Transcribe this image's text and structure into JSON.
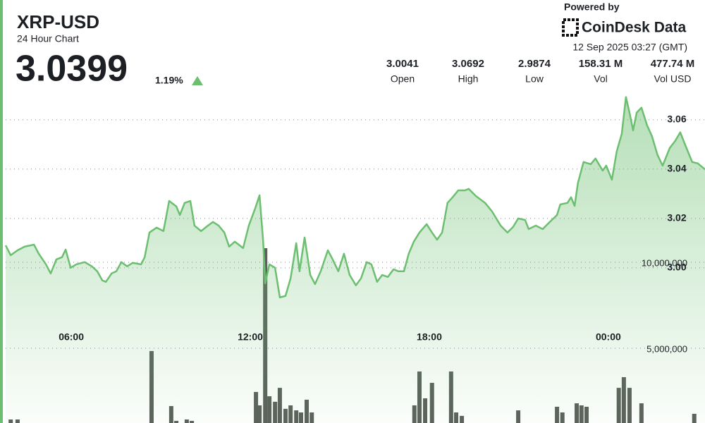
{
  "chart_data": {
    "type": "line",
    "title": "XRP-USD",
    "subtitle": "24 Hour Chart",
    "price": "3.0399",
    "change": "1.19%",
    "powered_by": "Powered by",
    "brand": "CoinDesk Data",
    "timestamp": "12 Sep 2025 03:27 (GMT)",
    "stats": [
      {
        "value": "3.0041",
        "label": "Open"
      },
      {
        "value": "3.0692",
        "label": "High"
      },
      {
        "value": "2.9874",
        "label": "Low"
      },
      {
        "value": "158.31 M",
        "label": "Vol"
      },
      {
        "value": "477.74 M",
        "label": "Vol USD"
      }
    ],
    "color": "#6cbf70",
    "grid": true,
    "xlim": [
      3.8,
      27.24
    ],
    "xticks": [
      {
        "value": 6,
        "label": "06:00"
      },
      {
        "value": 12,
        "label": "12:00"
      },
      {
        "value": 18,
        "label": "18:00"
      },
      {
        "value": 24,
        "label": "00:00"
      }
    ],
    "ylim": [
      2.9371,
      3.0714
    ],
    "yticks": [
      {
        "value": 3.0,
        "label": "3.00"
      },
      {
        "value": 3.02,
        "label": "3.02"
      },
      {
        "value": 3.04,
        "label": "3.04"
      },
      {
        "value": 3.06,
        "label": "3.06"
      }
    ],
    "y2lim": [
      655000,
      19920000
    ],
    "y2ticks": [
      {
        "value": 5000000,
        "label": "5,000,000"
      },
      {
        "value": 10000000,
        "label": "10,000,000"
      }
    ],
    "x": [
      3.8,
      3.97,
      4.2,
      4.44,
      4.75,
      4.91,
      5.15,
      5.31,
      5.5,
      5.69,
      5.81,
      5.98,
      6.17,
      6.45,
      6.69,
      6.87,
      7.04,
      7.16,
      7.35,
      7.51,
      7.68,
      7.87,
      8.06,
      8.34,
      8.46,
      8.62,
      8.86,
      9.09,
      9.28,
      9.52,
      9.64,
      9.8,
      9.99,
      10.13,
      10.35,
      10.58,
      10.75,
      10.94,
      11.13,
      11.29,
      11.48,
      11.76,
      11.95,
      12.17,
      12.31,
      12.43,
      12.5,
      12.64,
      12.83,
      12.99,
      13.18,
      13.35,
      13.54,
      13.65,
      13.82,
      14.01,
      14.17,
      14.36,
      14.6,
      14.76,
      14.95,
      15.14,
      15.33,
      15.54,
      15.71,
      15.9,
      16.06,
      16.25,
      16.42,
      16.61,
      16.8,
      16.96,
      17.15,
      17.31,
      17.48,
      17.67,
      17.91,
      18.09,
      18.26,
      18.43,
      18.61,
      18.78,
      18.97,
      19.2,
      19.32,
      19.56,
      19.87,
      20.1,
      20.39,
      20.62,
      20.81,
      20.98,
      21.21,
      21.33,
      21.57,
      21.8,
      22.04,
      22.28,
      22.39,
      22.63,
      22.75,
      22.87,
      22.98,
      23.17,
      23.41,
      23.57,
      23.81,
      23.93,
      24.12,
      24.28,
      24.45,
      24.59,
      24.71,
      24.83,
      24.95,
      25.11,
      25.3,
      25.46,
      25.65,
      25.82,
      26.06,
      26.24,
      26.41,
      26.57,
      26.81,
      27.0,
      27.24
    ],
    "values": [
      3.0091,
      3.0051,
      3.0071,
      3.0086,
      3.0094,
      3.0057,
      3.0014,
      2.9977,
      3.0034,
      3.0043,
      3.0074,
      3.0,
      3.0014,
      3.0023,
      3.0006,
      2.9986,
      2.9949,
      2.9943,
      2.9977,
      2.9986,
      3.0023,
      3.0006,
      3.002,
      3.0014,
      3.0043,
      3.0143,
      3.0163,
      3.0149,
      3.0271,
      3.0249,
      3.0214,
      3.0263,
      3.0271,
      3.0171,
      3.0149,
      3.0171,
      3.0186,
      3.0171,
      3.0143,
      3.0086,
      3.0106,
      3.008,
      3.0171,
      3.0243,
      3.0294,
      3.0109,
      2.9937,
      3.0014,
      3.0,
      2.988,
      2.9886,
      2.9957,
      3.01,
      2.9986,
      3.0123,
      2.9971,
      2.9934,
      2.9986,
      3.0071,
      3.0034,
      2.9986,
      3.0057,
      2.9971,
      2.9929,
      2.9957,
      3.0023,
      3.0014,
      2.9943,
      2.9971,
      2.9963,
      2.9994,
      2.9986,
      2.9986,
      3.0057,
      3.0106,
      3.0143,
      3.0177,
      3.0143,
      3.0114,
      3.0143,
      3.0263,
      3.0286,
      3.0314,
      3.0314,
      3.032,
      3.0291,
      3.0263,
      3.0229,
      3.0171,
      3.0143,
      3.0166,
      3.02,
      3.0194,
      3.0157,
      3.0171,
      3.0157,
      3.0186,
      3.0214,
      3.0257,
      3.0263,
      3.0286,
      3.0251,
      3.0343,
      3.0429,
      3.042,
      3.0443,
      3.0394,
      3.0414,
      3.0357,
      3.0471,
      3.0543,
      3.0692,
      3.0629,
      3.0557,
      3.0629,
      3.0649,
      3.0577,
      3.0534,
      3.0457,
      3.0414,
      3.0486,
      3.0514,
      3.0549,
      3.05,
      3.0429,
      3.0423,
      3.0399
    ],
    "volume": {
      "axis": "y2",
      "color": "#5b605b",
      "x": [
        3.97,
        4.2,
        8.69,
        9.35,
        9.52,
        9.87,
        10.04,
        12.19,
        12.31,
        12.5,
        12.64,
        12.83,
        12.99,
        13.18,
        13.35,
        13.54,
        13.7,
        13.89,
        14.06,
        17.5,
        17.67,
        17.86,
        18.09,
        18.73,
        18.9,
        19.09,
        20.98,
        22.28,
        22.46,
        22.94,
        23.1,
        23.27,
        24.35,
        24.52,
        24.71,
        25.11,
        26.88
      ],
      "values": [
        860000,
        860000,
        4840000,
        1640000,
        780000,
        860000,
        780000,
        2460000,
        1680000,
        10820000,
        2210000,
        1890000,
        2700000,
        1480000,
        1680000,
        1390000,
        1270000,
        2010000,
        1270000,
        1680000,
        3650000,
        2090000,
        2990000,
        3650000,
        1270000,
        1070000,
        1390000,
        1600000,
        1270000,
        1800000,
        1680000,
        1600000,
        2700000,
        3320000,
        2700000,
        1800000,
        1190000
      ]
    }
  }
}
